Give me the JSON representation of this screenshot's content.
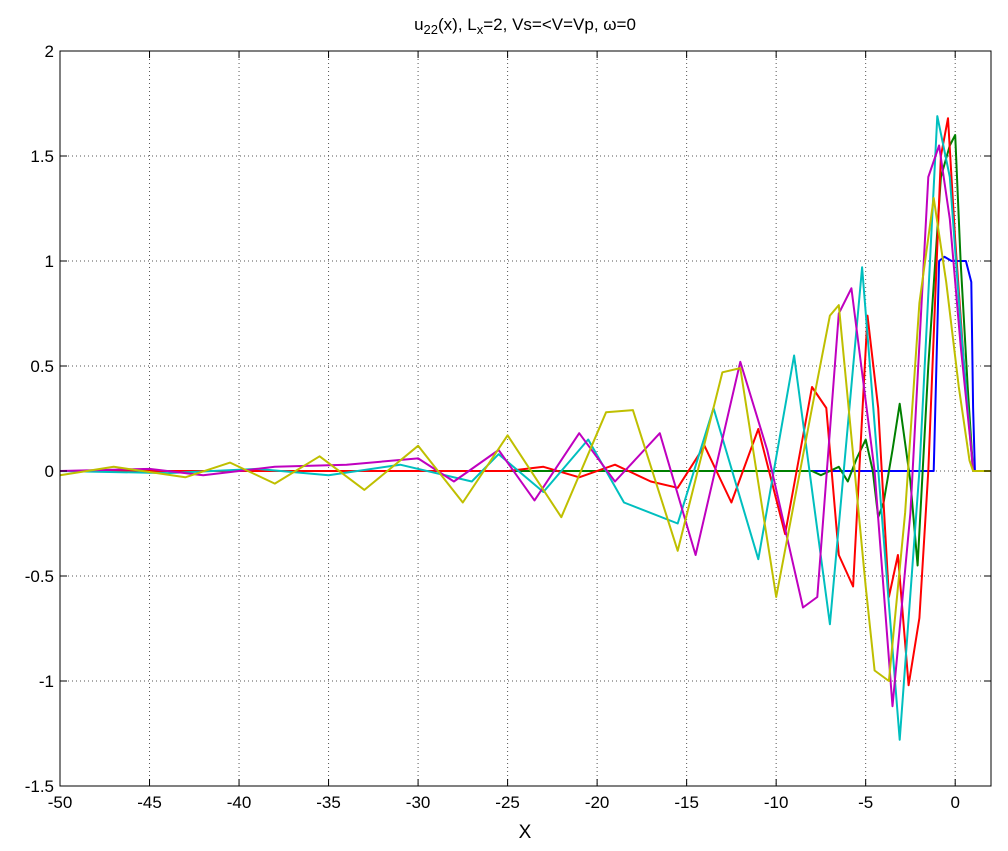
{
  "chart_data": {
    "type": "line",
    "title": {
      "parts": [
        {
          "t": "u"
        },
        {
          "t": "22",
          "sub": true
        },
        {
          "t": "(x), L"
        },
        {
          "t": "x",
          "sub": true
        },
        {
          "t": "=2,  Vs=<V=Vp, ω=0"
        }
      ]
    },
    "xlabel": "X",
    "ylabel": "",
    "xlim": [
      -50,
      2
    ],
    "ylim": [
      -1.5,
      2
    ],
    "xticks": [
      -50,
      -45,
      -40,
      -35,
      -30,
      -25,
      -20,
      -15,
      -10,
      -5,
      0
    ],
    "yticks": [
      -1.5,
      -1,
      -0.5,
      0,
      0.5,
      1,
      1.5,
      2
    ],
    "xtick_labels": [
      "-50",
      "-45",
      "-40",
      "-35",
      "-30",
      "-25",
      "-20",
      "-15",
      "-10",
      "-5",
      "0"
    ],
    "ytick_labels": [
      "-1.5",
      "-1",
      "-0.5",
      "0",
      "0.5",
      "1",
      "1.5",
      "2"
    ],
    "grid": true,
    "legend": "none",
    "series": [
      {
        "color": "#0000ff",
        "x": [
          -50,
          -1.2,
          -0.9,
          -0.6,
          -0.2,
          0.2,
          0.6,
          0.9,
          1.0,
          1.1,
          2
        ],
        "y": [
          0,
          0,
          1.0,
          1.02,
          1.0,
          1.0,
          1.0,
          0.9,
          0.3,
          0,
          0
        ]
      },
      {
        "color": "#008000",
        "x": [
          -50,
          -8,
          -7.5,
          -7,
          -6.5,
          -6,
          -5.5,
          -5,
          -4.6,
          -4.3,
          -4,
          -3.5,
          -3.1,
          -2.5,
          -2.1,
          -1.5,
          -0.8,
          -0.3,
          0,
          0.3,
          0.7,
          1.0,
          2
        ],
        "y": [
          0,
          0,
          -0.02,
          0.0,
          0.02,
          -0.05,
          0.06,
          0.15,
          0.0,
          -0.22,
          -0.15,
          0.1,
          0.32,
          -0.05,
          -0.45,
          0.5,
          1.4,
          1.55,
          1.6,
          1.0,
          0.4,
          0,
          0
        ]
      },
      {
        "color": "#ff0000",
        "x": [
          -50,
          -25,
          -23,
          -21,
          -19,
          -17,
          -15.5,
          -14,
          -12.5,
          -11,
          -9.5,
          -8,
          -7.2,
          -6.5,
          -5.7,
          -4.9,
          -4.3,
          -3.7,
          -3.2,
          -2.6,
          -2.0,
          -1.5,
          -0.8,
          -0.4,
          0,
          0.5,
          0.9,
          1.0,
          2
        ],
        "y": [
          0,
          0,
          0.02,
          -0.03,
          0.03,
          -0.05,
          -0.08,
          0.12,
          -0.15,
          0.2,
          -0.3,
          0.4,
          0.3,
          -0.4,
          -0.55,
          0.74,
          0.3,
          -0.6,
          -0.4,
          -1.02,
          -0.7,
          0.0,
          1.5,
          1.68,
          1.1,
          0.5,
          0.1,
          0,
          0
        ]
      },
      {
        "color": "#00bfbf",
        "x": [
          -50,
          -44,
          -39,
          -35,
          -31,
          -27,
          -25.5,
          -23,
          -20.5,
          -18.5,
          -15.5,
          -13.5,
          -11,
          -9,
          -7,
          -5.2,
          -3.1,
          -2,
          -1,
          -0.3,
          0.3,
          0.9,
          1.0,
          2
        ],
        "y": [
          0,
          -0.01,
          0.01,
          -0.02,
          0.03,
          -0.05,
          0.08,
          -0.1,
          0.15,
          -0.15,
          -0.25,
          0.3,
          -0.42,
          0.55,
          -0.73,
          0.97,
          -1.28,
          0.0,
          1.69,
          1.4,
          0.7,
          0.1,
          0,
          0
        ]
      },
      {
        "color": "#bf00bf",
        "x": [
          -50,
          -45,
          -42,
          -38,
          -34,
          -30,
          -28,
          -25.5,
          -23.5,
          -21,
          -19,
          -16.5,
          -14.5,
          -12,
          -10.5,
          -8.5,
          -7.7,
          -6.5,
          -5.8,
          -4.5,
          -3.5,
          -2.5,
          -1.5,
          -0.9,
          -0.3,
          0.3,
          0.9,
          1.0,
          2
        ],
        "y": [
          0,
          0.01,
          -0.02,
          0.02,
          0.03,
          0.06,
          -0.05,
          0.1,
          -0.14,
          0.18,
          -0.05,
          0.18,
          -0.4,
          0.52,
          0.1,
          -0.65,
          -0.6,
          0.75,
          0.87,
          0.0,
          -1.12,
          -0.2,
          1.4,
          1.55,
          1.2,
          0.6,
          0.1,
          0,
          0
        ]
      },
      {
        "color": "#bfbf00",
        "x": [
          -50,
          -47,
          -43,
          -40.5,
          -38,
          -35.5,
          -33,
          -30,
          -27.5,
          -25,
          -22,
          -19.5,
          -18,
          -15.5,
          -13,
          -12,
          -10,
          -8,
          -7,
          -6.5,
          -5,
          -4.5,
          -3.7,
          -2.8,
          -2,
          -1.2,
          -0.5,
          0.2,
          0.8,
          1.0,
          2
        ],
        "y": [
          -0.02,
          0.02,
          -0.03,
          0.04,
          -0.06,
          0.07,
          -0.09,
          0.12,
          -0.15,
          0.17,
          -0.22,
          0.28,
          0.29,
          -0.38,
          0.47,
          0.49,
          -0.6,
          0.3,
          0.74,
          0.79,
          -0.55,
          -0.95,
          -1.0,
          -0.2,
          0.8,
          1.3,
          0.9,
          0.4,
          0.05,
          0,
          0
        ]
      }
    ]
  }
}
